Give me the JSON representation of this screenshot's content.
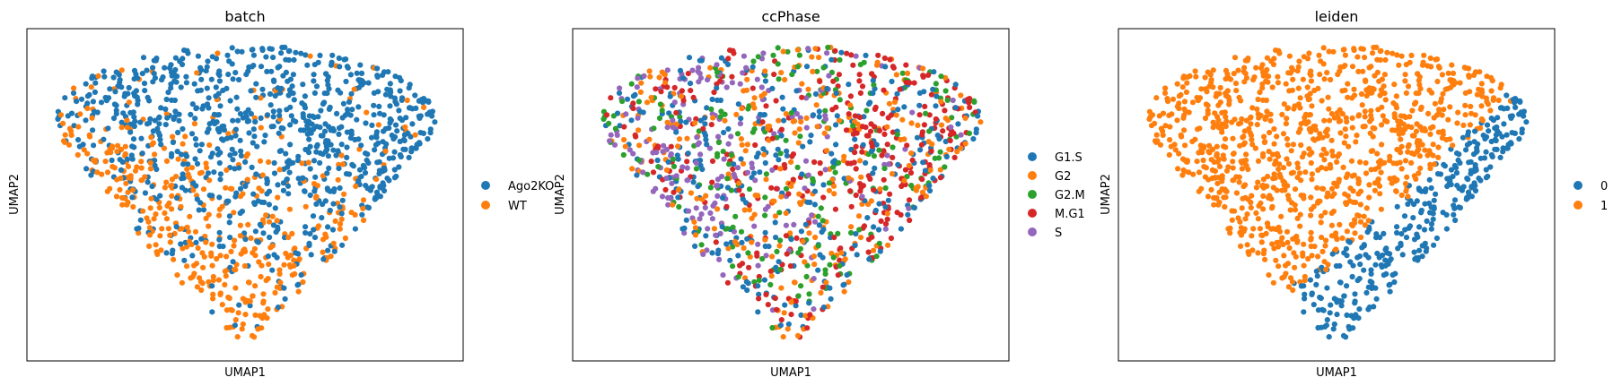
{
  "chart_data": [
    {
      "type": "scatter",
      "title": "batch",
      "xlabel": "UMAP1",
      "ylabel": "UMAP2",
      "xticks": [],
      "yticks": [],
      "grid": false,
      "legend_position": "right",
      "legend": [
        {
          "label": "Ago2KO",
          "color": "#1f77b4"
        },
        {
          "label": "WT",
          "color": "#ff7f0e"
        }
      ]
    },
    {
      "type": "scatter",
      "title": "ccPhase",
      "xlabel": "UMAP1",
      "ylabel": "UMAP2",
      "xticks": [],
      "yticks": [],
      "grid": false,
      "legend_position": "right",
      "legend": [
        {
          "label": "G1.S",
          "color": "#1f77b4"
        },
        {
          "label": "G2",
          "color": "#ff7f0e"
        },
        {
          "label": "G2.M",
          "color": "#2ca02c"
        },
        {
          "label": "M.G1",
          "color": "#d62728"
        },
        {
          "label": "S",
          "color": "#9467bd"
        }
      ]
    },
    {
      "type": "scatter",
      "title": "leiden",
      "xlabel": "UMAP1",
      "ylabel": "UMAP2",
      "xticks": [],
      "yticks": [],
      "grid": false,
      "legend_position": "right",
      "legend": [
        {
          "label": "0",
          "color": "#1f77b4"
        },
        {
          "label": "1",
          "color": "#ff7f0e"
        }
      ]
    }
  ]
}
